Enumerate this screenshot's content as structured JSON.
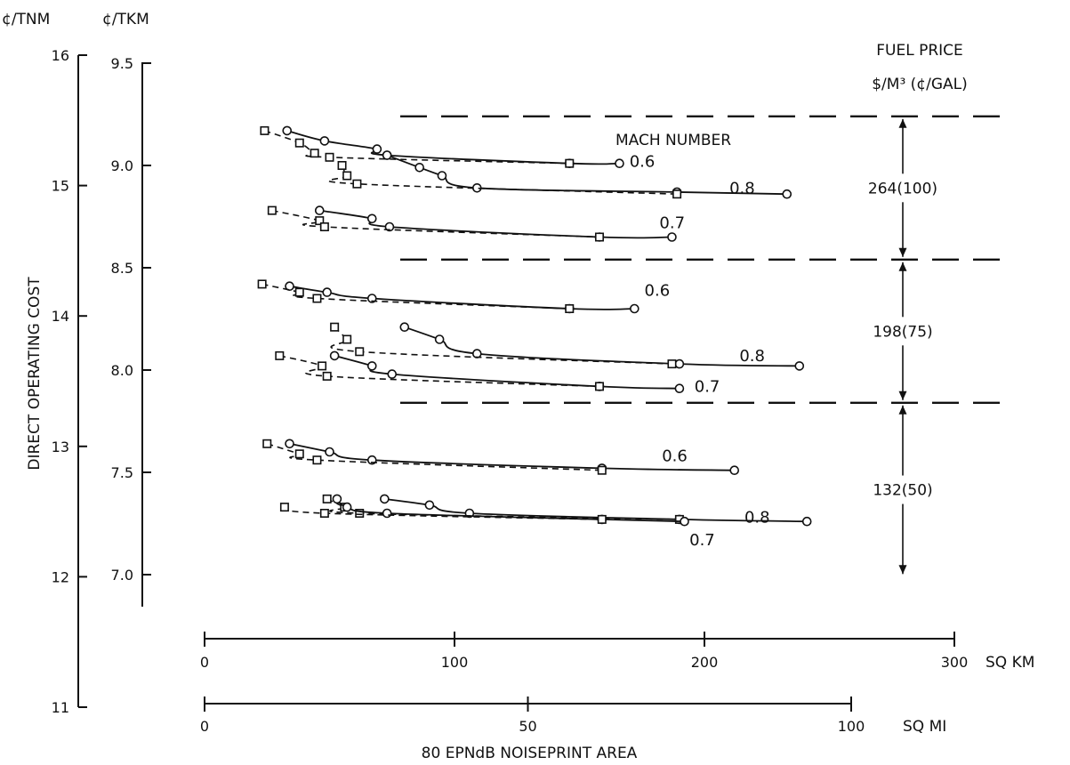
{
  "chart_data": {
    "type": "line",
    "title": "",
    "xlabel": "80 EPNdB NOISEPRINT AREA",
    "x_axis_km": {
      "unit": "SQ KM",
      "range": [
        0,
        300
      ],
      "ticks": [
        "0",
        "100",
        "200",
        "300"
      ]
    },
    "x_axis_mi": {
      "unit": "SQ MI",
      "range": [
        0,
        100
      ],
      "ticks": [
        "0",
        "50",
        "100"
      ]
    },
    "ylabel": "DIRECT OPERATING COST",
    "y_axis_tnm": {
      "unit": "¢/TNM",
      "range": [
        11,
        16
      ],
      "ticks": [
        "11",
        "12",
        "13",
        "14",
        "15",
        "16"
      ]
    },
    "y_axis_tkm": {
      "unit": "¢/TKM",
      "range": [
        7.0,
        9.5
      ],
      "ticks": [
        "7.0",
        "7.5",
        "8.0",
        "8.5",
        "9.0",
        "9.5"
      ]
    },
    "fuel_price_header": [
      "FUEL PRICE",
      "$/M³ (¢/GAL)"
    ],
    "mach_header": "MACH NUMBER",
    "fuel_bands": [
      {
        "label": "264(100)",
        "from_tkm": 8.54,
        "to_tkm": 9.24
      },
      {
        "label": "198(75)",
        "from_tkm": 7.84,
        "to_tkm": 8.54
      },
      {
        "label": "132(50)",
        "from_tkm": 6.99,
        "to_tkm": 7.84
      }
    ],
    "series": [
      {
        "fuel": "264(100)",
        "mach": "0.6",
        "label": "0.6",
        "style": "solid",
        "marker": "circle",
        "label_at": [
          170,
          9.02
        ],
        "points": [
          [
            33,
            9.17
          ],
          [
            48,
            9.12
          ],
          [
            69,
            9.08
          ],
          [
            73,
            9.05
          ],
          [
            146,
            9.01
          ],
          [
            166,
            9.01
          ]
        ]
      },
      {
        "fuel": "264(100)",
        "mach": "0.6",
        "style": "dashed",
        "marker": "square",
        "points": [
          [
            24,
            9.17
          ],
          [
            38,
            9.11
          ],
          [
            44,
            9.06
          ],
          [
            50,
            9.04
          ],
          [
            146,
            9.01
          ]
        ]
      },
      {
        "fuel": "264(100)",
        "mach": "0.8",
        "label": "0.8",
        "style": "solid",
        "marker": "circle",
        "label_at": [
          210,
          8.89
        ],
        "points": [
          [
            73,
            9.05
          ],
          [
            86,
            8.99
          ],
          [
            95,
            8.95
          ],
          [
            109,
            8.89
          ],
          [
            189,
            8.87
          ],
          [
            233,
            8.86
          ]
        ]
      },
      {
        "fuel": "264(100)",
        "mach": "0.8",
        "style": "dashed",
        "marker": "square",
        "points": [
          [
            55,
            9.0
          ],
          [
            57,
            8.95
          ],
          [
            61,
            8.91
          ],
          [
            189,
            8.86
          ]
        ]
      },
      {
        "fuel": "264(100)",
        "mach": "0.7",
        "label": "0.7",
        "style": "solid",
        "marker": "circle",
        "label_at": [
          182,
          8.72
        ],
        "points": [
          [
            46,
            8.78
          ],
          [
            67,
            8.74
          ],
          [
            74,
            8.7
          ],
          [
            158,
            8.65
          ],
          [
            187,
            8.65
          ]
        ]
      },
      {
        "fuel": "264(100)",
        "mach": "0.7",
        "style": "dashed",
        "marker": "square",
        "points": [
          [
            27,
            8.78
          ],
          [
            46,
            8.73
          ],
          [
            48,
            8.7
          ],
          [
            158,
            8.65
          ]
        ]
      },
      {
        "fuel": "198(75)",
        "mach": "0.6",
        "label": "0.6",
        "style": "solid",
        "marker": "circle",
        "label_at": [
          176,
          8.39
        ],
        "points": [
          [
            34,
            8.41
          ],
          [
            49,
            8.38
          ],
          [
            67,
            8.35
          ],
          [
            146,
            8.3
          ],
          [
            172,
            8.3
          ]
        ]
      },
      {
        "fuel": "198(75)",
        "mach": "0.6",
        "style": "dashed",
        "marker": "square",
        "points": [
          [
            23,
            8.42
          ],
          [
            38,
            8.38
          ],
          [
            45,
            8.35
          ],
          [
            146,
            8.3
          ]
        ]
      },
      {
        "fuel": "198(75)",
        "mach": "0.8",
        "label": "0.8",
        "style": "solid",
        "marker": "circle",
        "label_at": [
          214,
          8.07
        ],
        "points": [
          [
            80,
            8.21
          ],
          [
            94,
            8.15
          ],
          [
            109,
            8.08
          ],
          [
            190,
            8.03
          ],
          [
            238,
            8.02
          ]
        ]
      },
      {
        "fuel": "198(75)",
        "mach": "0.8",
        "style": "dashed",
        "marker": "square",
        "points": [
          [
            52,
            8.21
          ],
          [
            57,
            8.15
          ],
          [
            62,
            8.09
          ],
          [
            187,
            8.03
          ]
        ]
      },
      {
        "fuel": "198(75)",
        "mach": "0.7",
        "label": "0.7",
        "style": "solid",
        "marker": "circle",
        "label_at": [
          196,
          7.92
        ],
        "points": [
          [
            52,
            8.07
          ],
          [
            67,
            8.02
          ],
          [
            75,
            7.98
          ],
          [
            158,
            7.92
          ],
          [
            190,
            7.91
          ]
        ]
      },
      {
        "fuel": "198(75)",
        "mach": "0.7",
        "style": "dashed",
        "marker": "square",
        "points": [
          [
            30,
            8.07
          ],
          [
            47,
            8.02
          ],
          [
            49,
            7.97
          ],
          [
            158,
            7.92
          ]
        ]
      },
      {
        "fuel": "132(50)",
        "mach": "0.6",
        "label": "0.6",
        "style": "solid",
        "marker": "circle",
        "label_at": [
          183,
          7.58
        ],
        "points": [
          [
            34,
            7.64
          ],
          [
            50,
            7.6
          ],
          [
            67,
            7.56
          ],
          [
            159,
            7.52
          ],
          [
            212,
            7.51
          ]
        ]
      },
      {
        "fuel": "132(50)",
        "mach": "0.6",
        "style": "dashed",
        "marker": "square",
        "points": [
          [
            25,
            7.64
          ],
          [
            38,
            7.59
          ],
          [
            45,
            7.56
          ],
          [
            159,
            7.51
          ]
        ]
      },
      {
        "fuel": "132(50)",
        "mach": "0.8",
        "label": "0.8",
        "style": "solid",
        "marker": "circle",
        "label_at": [
          216,
          7.28
        ],
        "points": [
          [
            72,
            7.37
          ],
          [
            90,
            7.34
          ],
          [
            106,
            7.3
          ],
          [
            190,
            7.27
          ],
          [
            241,
            7.26
          ]
        ]
      },
      {
        "fuel": "132(50)",
        "mach": "0.8",
        "style": "dashed",
        "marker": "square",
        "points": [
          [
            49,
            7.37
          ],
          [
            56,
            7.33
          ],
          [
            62,
            7.3
          ],
          [
            190,
            7.27
          ]
        ]
      },
      {
        "fuel": "132(50)",
        "mach": "0.7",
        "label": "0.7",
        "style": "solid",
        "marker": "circle",
        "label_at": [
          194,
          7.17
        ],
        "points": [
          [
            53,
            7.37
          ],
          [
            57,
            7.33
          ],
          [
            73,
            7.3
          ],
          [
            159,
            7.27
          ],
          [
            192,
            7.26
          ]
        ]
      },
      {
        "fuel": "132(50)",
        "mach": "0.7",
        "style": "dashed",
        "marker": "square",
        "points": [
          [
            32,
            7.33
          ],
          [
            48,
            7.3
          ],
          [
            159,
            7.27
          ]
        ]
      }
    ]
  }
}
